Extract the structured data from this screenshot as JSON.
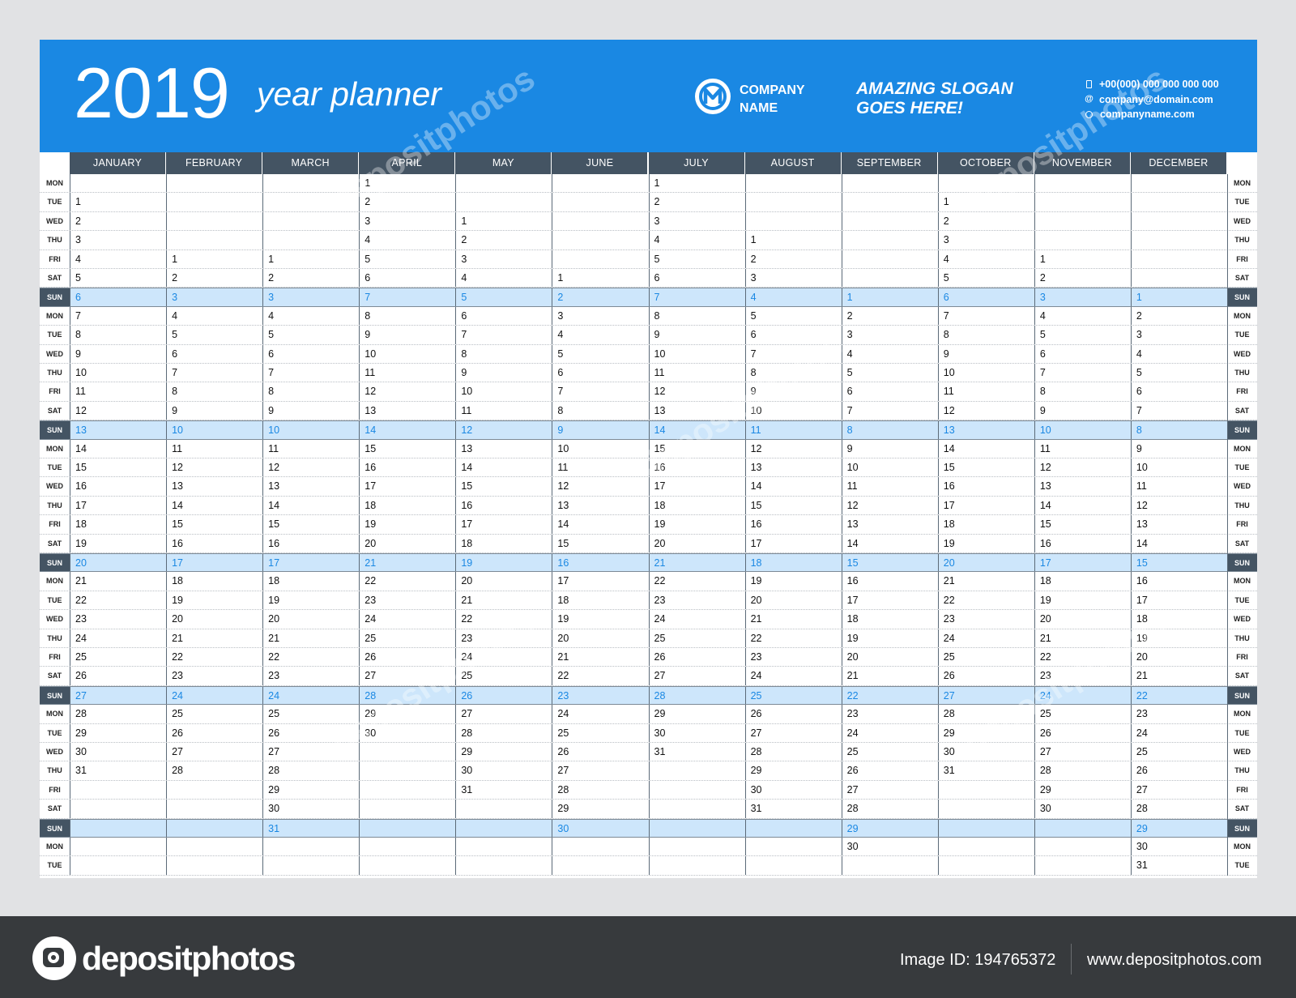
{
  "header": {
    "year": "2019",
    "subtitle": "year planner",
    "company_line1": "COMPANY",
    "company_line2": "NAME",
    "slogan_line1": "AMAZING SLOGAN",
    "slogan_line2": "GOES HERE!",
    "phone": "+00(000) 000 000 000 000",
    "email": "company@domain.com",
    "website": "companyname.com"
  },
  "colors": {
    "accent": "#1a88e3",
    "dark": "#445463",
    "sunday_bg": "#cde6fb",
    "footer": "#373a3d"
  },
  "months": [
    "JANUARY",
    "FEBRUARY",
    "MARCH",
    "APRIL",
    "MAY",
    "JUNE",
    "JULY",
    "AUGUST",
    "SEPTEMBER",
    "OCTOBER",
    "NOVEMBER",
    "DECEMBER"
  ],
  "month_start_offsets": [
    1,
    4,
    4,
    0,
    2,
    5,
    0,
    3,
    6,
    1,
    4,
    6
  ],
  "month_lengths": [
    31,
    28,
    31,
    30,
    31,
    30,
    31,
    31,
    30,
    31,
    30,
    31
  ],
  "weekdays": [
    "MON",
    "TUE",
    "WED",
    "THU",
    "FRI",
    "SAT",
    "SUN"
  ],
  "row_count": 37,
  "footer": {
    "brand": "depositphotos",
    "image_id": "Image ID: 194765372",
    "site": "www.depositphotos.com"
  },
  "watermark": "depositphotos"
}
